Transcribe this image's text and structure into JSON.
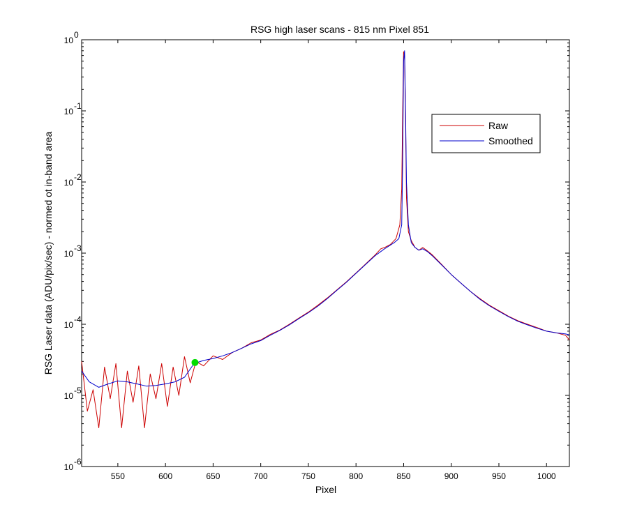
{
  "chart_data": {
    "type": "line",
    "title": "RSG high laser scans  - 815 nm    Pixel 851",
    "xlabel": "Pixel",
    "ylabel": "RSG Laser data (ADU/pix/sec) - normed ot in-band area",
    "xlim": [
      512,
      1024
    ],
    "ylim": [
      1e-06,
      1
    ],
    "yscale": "log",
    "xticks": [
      550,
      600,
      650,
      700,
      750,
      800,
      850,
      900,
      950,
      1000
    ],
    "xtick_labels": [
      "550",
      "600",
      "650",
      "700",
      "750",
      "800",
      "850",
      "900",
      "950",
      "1000"
    ],
    "yticks": [
      {
        "value": 1e-06,
        "base": "10",
        "exp": "-6"
      },
      {
        "value": 1e-05,
        "base": "10",
        "exp": "-5"
      },
      {
        "value": 0.0001,
        "base": "10",
        "exp": "-4"
      },
      {
        "value": 0.001,
        "base": "10",
        "exp": "-3"
      },
      {
        "value": 0.01,
        "base": "10",
        "exp": "-2"
      },
      {
        "value": 0.1,
        "base": "10",
        "exp": "-1"
      },
      {
        "value": 1,
        "base": "10",
        "exp": "0"
      }
    ],
    "grid": false,
    "legend_position": "top-right",
    "series": [
      {
        "name": "Raw",
        "color": "#cc0000",
        "x": [
          512,
          518,
          524,
          530,
          536,
          542,
          548,
          554,
          560,
          566,
          572,
          578,
          584,
          590,
          596,
          602,
          608,
          614,
          620,
          626,
          632,
          640,
          650,
          660,
          670,
          680,
          690,
          700,
          710,
          720,
          730,
          740,
          750,
          760,
          770,
          780,
          790,
          800,
          810,
          820,
          826,
          830,
          836,
          842,
          846,
          848,
          849,
          850,
          851,
          852,
          853,
          855,
          858,
          862,
          866,
          870,
          874,
          880,
          890,
          900,
          910,
          920,
          930,
          940,
          950,
          960,
          970,
          980,
          990,
          1000,
          1010,
          1020,
          1024
        ],
        "y": [
          3e-05,
          6e-06,
          1.2e-05,
          3.5e-06,
          2.5e-05,
          9e-06,
          2.8e-05,
          3.5e-06,
          2.2e-05,
          8e-06,
          2.6e-05,
          3.5e-06,
          2e-05,
          9e-06,
          2.8e-05,
          7e-06,
          2.5e-05,
          1e-05,
          3.5e-05,
          1.5e-05,
          3e-05,
          2.6e-05,
          3.6e-05,
          3.2e-05,
          4e-05,
          4.6e-05,
          5.5e-05,
          6e-05,
          7.2e-05,
          8.3e-05,
          0.0001,
          0.000122,
          0.000148,
          0.000185,
          0.000235,
          0.000305,
          0.000395,
          0.000525,
          0.0007,
          0.00094,
          0.00115,
          0.0012,
          0.00132,
          0.0016,
          0.0025,
          0.008,
          0.1,
          0.68,
          0.6,
          0.08,
          0.006,
          0.002,
          0.0015,
          0.0012,
          0.0011,
          0.0012,
          0.0011,
          0.00095,
          0.00069,
          0.0005,
          0.00038,
          0.00029,
          0.00023,
          0.000185,
          0.000155,
          0.00013,
          0.000112,
          0.0001,
          9e-05,
          8e-05,
          7.6e-05,
          7e-05,
          6e-05
        ]
      },
      {
        "name": "Smoothed",
        "color": "#0000cc",
        "x": [
          512,
          520,
          530,
          540,
          550,
          560,
          570,
          580,
          590,
          600,
          610,
          620,
          630,
          640,
          650,
          660,
          670,
          680,
          690,
          700,
          710,
          720,
          730,
          740,
          750,
          760,
          770,
          780,
          790,
          800,
          810,
          820,
          830,
          840,
          845,
          848,
          849,
          850,
          851,
          852,
          853,
          855,
          858,
          862,
          866,
          870,
          875,
          880,
          890,
          900,
          910,
          920,
          930,
          940,
          950,
          960,
          970,
          980,
          990,
          1000,
          1010,
          1020,
          1024
        ],
        "y": [
          2.2e-05,
          1.55e-05,
          1.3e-05,
          1.45e-05,
          1.6e-05,
          1.55e-05,
          1.45e-05,
          1.35e-05,
          1.38e-05,
          1.45e-05,
          1.55e-05,
          1.8e-05,
          2.8e-05,
          3.1e-05,
          3.3e-05,
          3.6e-05,
          4e-05,
          4.6e-05,
          5.3e-05,
          5.9e-05,
          7e-05,
          8.2e-05,
          9.8e-05,
          0.00012,
          0.000145,
          0.00018,
          0.00023,
          0.0003,
          0.00039,
          0.00052,
          0.00069,
          0.00092,
          0.00115,
          0.0014,
          0.0016,
          0.0025,
          0.02,
          0.5,
          0.7,
          0.1,
          0.01,
          0.0025,
          0.0014,
          0.0012,
          0.0011,
          0.00115,
          0.00105,
          0.00092,
          0.00068,
          0.0005,
          0.00038,
          0.00029,
          0.000225,
          0.000182,
          0.000152,
          0.000128,
          0.00011,
          9.8e-05,
          8.8e-05,
          8e-05,
          7.6e-05,
          7.3e-05,
          7.1e-05
        ]
      }
    ],
    "markers": [
      {
        "x": 631,
        "y": 2.9e-05,
        "color": "#00dd00"
      }
    ]
  }
}
